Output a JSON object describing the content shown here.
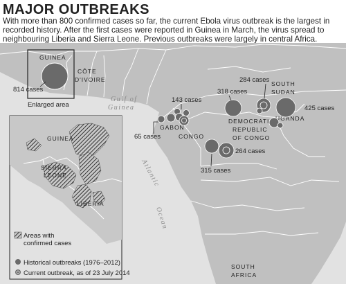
{
  "title": "MAJOR OUTBREAKS",
  "intro": [
    "With more than 800 confirmed cases so far, the current Ebola virus outbreak is the largest in",
    "recorded history. After the first cases were reported in Guinea in March, the virus spread to",
    "neighbouring Liberia and Sierra Leone. Previous outbreaks were largely in central Africa."
  ],
  "countries": {
    "guinea": "GUINEA",
    "cote_divoire": [
      "CÔTE",
      "D'IVOIRE"
    ],
    "gabon": "GABON",
    "congo": "CONGO",
    "drc": [
      "DEMOCRATIC",
      "REPUBLIC",
      "OF CONGO"
    ],
    "south_sudan": [
      "SOUTH",
      "SUDAN"
    ],
    "uganda": "UGANDA",
    "south_africa": [
      "SOUTH",
      "AFRICA"
    ]
  },
  "seas": {
    "gulf": [
      "Gulf of",
      "Guinea"
    ],
    "atlantic": "Atlantic",
    "ocean": "Ocean"
  },
  "case_labels": {
    "guinea": "814 cases",
    "gabon_north": "143 cases",
    "gabon_coast": "65 cases",
    "drc_north": "318 cases",
    "south_sudan": "284 cases",
    "uganda": "425 cases",
    "drc_south": "264 cases",
    "drc_southwest": "315 cases"
  },
  "enlarged_label": "Enlarged area",
  "inset": {
    "guinea": "GUINEA",
    "sierra_leone": [
      "SIERRA",
      "LEONE"
    ],
    "liberia": "LIBERIA"
  },
  "legend": {
    "areas": [
      "Areas with",
      "confirmed cases"
    ],
    "historical": "Historical outbreaks (1976–2012)",
    "current": "Current outbreak, as of 23 July 2014"
  },
  "colors": {
    "sea": "#e2e2e2",
    "land": "#c0c0c0",
    "marker": "#6a6a6a",
    "hatch": "#444444"
  }
}
